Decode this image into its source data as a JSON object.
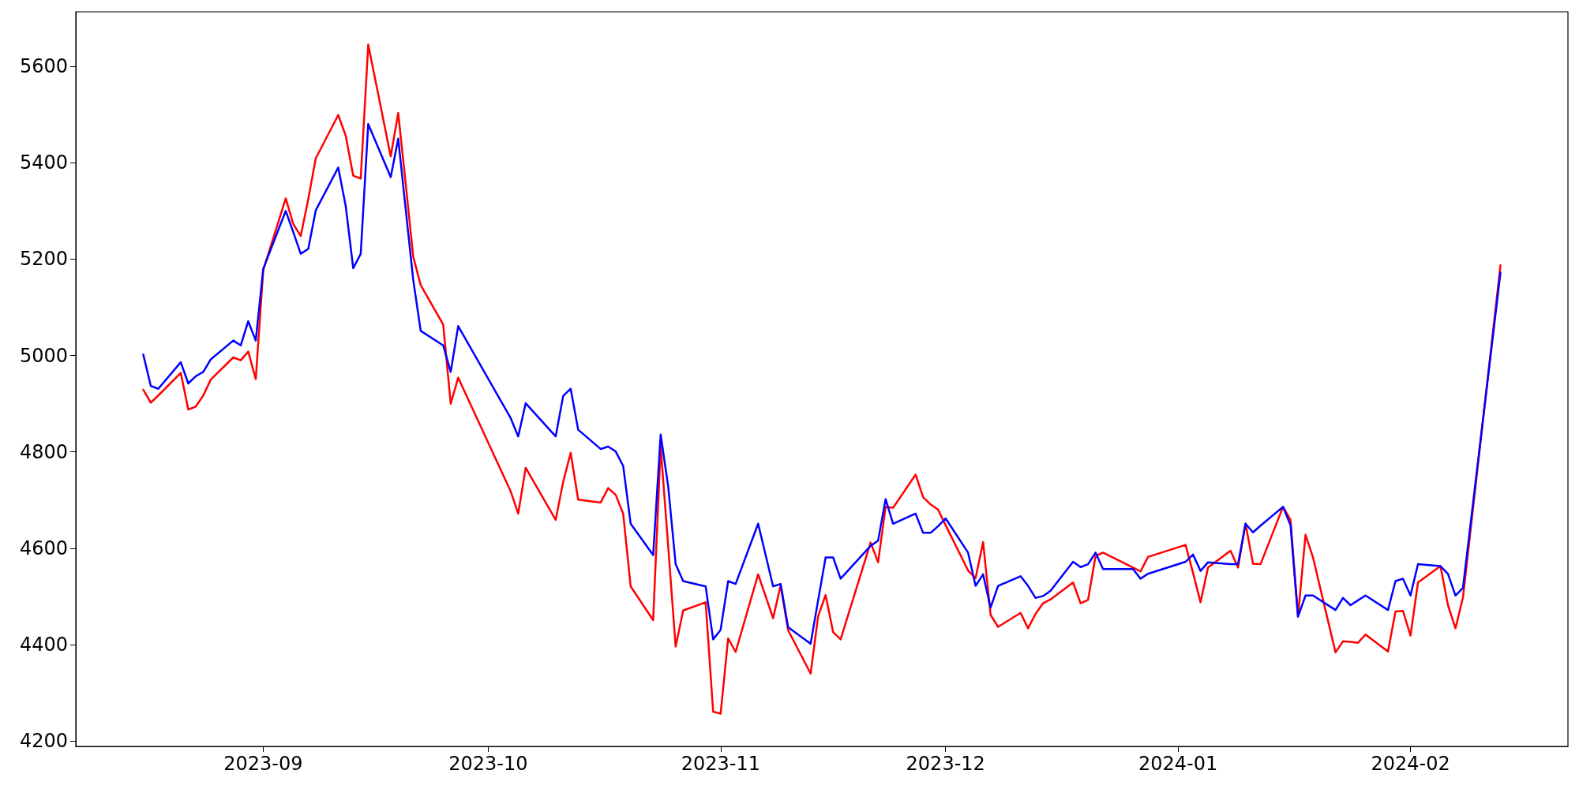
{
  "chart_data": {
    "type": "line",
    "x": [
      "2023-08-16",
      "2023-08-17",
      "2023-08-18",
      "2023-08-21",
      "2023-08-22",
      "2023-08-23",
      "2023-08-24",
      "2023-08-25",
      "2023-08-28",
      "2023-08-29",
      "2023-08-30",
      "2023-08-31",
      "2023-09-01",
      "2023-09-04",
      "2023-09-05",
      "2023-09-06",
      "2023-09-07",
      "2023-09-08",
      "2023-09-11",
      "2023-09-12",
      "2023-09-13",
      "2023-09-14",
      "2023-09-15",
      "2023-09-18",
      "2023-09-19",
      "2023-09-20",
      "2023-09-21",
      "2023-09-22",
      "2023-09-25",
      "2023-09-26",
      "2023-09-27",
      "2023-10-04",
      "2023-10-05",
      "2023-10-06",
      "2023-10-10",
      "2023-10-11",
      "2023-10-12",
      "2023-10-13",
      "2023-10-16",
      "2023-10-17",
      "2023-10-18",
      "2023-10-19",
      "2023-10-20",
      "2023-10-23",
      "2023-10-24",
      "2023-10-25",
      "2023-10-26",
      "2023-10-27",
      "2023-10-30",
      "2023-10-31",
      "2023-11-01",
      "2023-11-02",
      "2023-11-03",
      "2023-11-06",
      "2023-11-08",
      "2023-11-09",
      "2023-11-10",
      "2023-11-13",
      "2023-11-14",
      "2023-11-15",
      "2023-11-16",
      "2023-11-17",
      "2023-11-21",
      "2023-11-22",
      "2023-11-23",
      "2023-11-24",
      "2023-11-27",
      "2023-11-28",
      "2023-11-29",
      "2023-11-30",
      "2023-12-01",
      "2023-12-04",
      "2023-12-05",
      "2023-12-06",
      "2023-12-07",
      "2023-12-08",
      "2023-12-11",
      "2023-12-12",
      "2023-12-13",
      "2023-12-14",
      "2023-12-15",
      "2023-12-18",
      "2023-12-19",
      "2023-12-20",
      "2023-12-21",
      "2023-12-22",
      "2023-12-26",
      "2023-12-27",
      "2023-12-28",
      "2024-01-02",
      "2024-01-03",
      "2024-01-04",
      "2024-01-05",
      "2024-01-08",
      "2024-01-09",
      "2024-01-10",
      "2024-01-11",
      "2024-01-12",
      "2024-01-15",
      "2024-01-16",
      "2024-01-17",
      "2024-01-18",
      "2024-01-19",
      "2024-01-22",
      "2024-01-23",
      "2024-01-24",
      "2024-01-25",
      "2024-01-26",
      "2024-01-29",
      "2024-01-30",
      "2024-01-31",
      "2024-02-01",
      "2024-02-02",
      "2024-02-05",
      "2024-02-06",
      "2024-02-07",
      "2024-02-08",
      "2024-02-13"
    ],
    "series": [
      {
        "color": "#ff0000",
        "values": [
          4929,
          4902,
          4917,
          4964,
          4888,
          4894,
          4917,
          4950,
          4996,
          4990,
          5008,
          4951,
          5177,
          5326,
          5273,
          5248,
          5324,
          5409,
          5499,
          5456,
          5373,
          5367,
          5645,
          5413,
          5503,
          5356,
          5205,
          5146,
          5064,
          4900,
          4954,
          4718,
          4672,
          4767,
          4659,
          4738,
          4798,
          4701,
          4695,
          4725,
          4711,
          4672,
          4521,
          4451,
          4811,
          4605,
          4396,
          4471,
          4488,
          4261,
          4257,
          4413,
          4385,
          4546,
          4455,
          4523,
          4430,
          4340,
          4459,
          4503,
          4426,
          4411,
          4612,
          4571,
          4686,
          4684,
          4753,
          4706,
          4691,
          4680,
          4648,
          4554,
          4538,
          4613,
          4462,
          4437,
          4466,
          4434,
          4464,
          4486,
          4494,
          4529,
          4486,
          4493,
          4584,
          4591,
          4560,
          4552,
          4582,
          4607,
          4549,
          4488,
          4560,
          4595,
          4560,
          4651,
          4568,
          4567,
          4686,
          4659,
          4459,
          4628,
          4581,
          4384,
          4407,
          4406,
          4404,
          4421,
          4386,
          4469,
          4470,
          4419,
          4529,
          4563,
          4482,
          4434,
          4498,
          5187
        ]
      },
      {
        "color": "#0000ff",
        "values": [
          5002,
          4937,
          4931,
          4986,
          4942,
          4957,
          4966,
          4992,
          5031,
          5021,
          5071,
          5031,
          5180,
          5300,
          5256,
          5211,
          5221,
          5301,
          5390,
          5310,
          5181,
          5211,
          5480,
          5370,
          5450,
          5303,
          5157,
          5051,
          5021,
          4966,
          5061,
          4870,
          4832,
          4901,
          4832,
          4916,
          4931,
          4846,
          4806,
          4811,
          4801,
          4771,
          4651,
          4586,
          4836,
          4729,
          4567,
          4532,
          4521,
          4411,
          4431,
          4532,
          4526,
          4651,
          4521,
          4526,
          4436,
          4402,
          4492,
          4581,
          4581,
          4537,
          4605,
          4616,
          4702,
          4651,
          4672,
          4632,
          4632,
          4646,
          4662,
          4591,
          4522,
          4546,
          4477,
          4522,
          4542,
          4522,
          4497,
          4501,
          4512,
          4572,
          4561,
          4567,
          4591,
          4557,
          4557,
          4537,
          4547,
          4572,
          4587,
          4553,
          4571,
          4567,
          4567,
          4651,
          4633,
          4647,
          4686,
          4648,
          4458,
          4502,
          4502,
          4472,
          4497,
          4482,
          4492,
          4502,
          4472,
          4532,
          4537,
          4502,
          4567,
          4563,
          4547,
          4502,
          4518,
          5172
        ]
      }
    ],
    "xlim": [
      "2023-08-07",
      "2024-02-22"
    ],
    "xticks": [
      "2023-09",
      "2023-10",
      "2023-11",
      "2023-12",
      "2024-01",
      "2024-02"
    ],
    "ylim": [
      4189,
      5713
    ],
    "yticks": [
      4200,
      4400,
      4600,
      4800,
      5000,
      5200,
      5400,
      5600
    ],
    "marker": "none",
    "line_style": "solid"
  }
}
